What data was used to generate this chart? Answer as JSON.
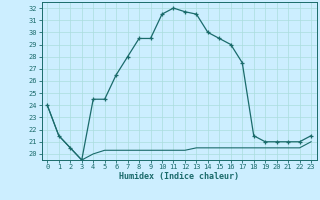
{
  "title": "",
  "xlabel": "Humidex (Indice chaleur)",
  "bg_color": "#cceeff",
  "line_color": "#1a6b6b",
  "grid_color": "#aadddd",
  "x_main": [
    0,
    1,
    2,
    3,
    4,
    5,
    6,
    7,
    8,
    9,
    10,
    11,
    12,
    13,
    14,
    15,
    16,
    17,
    18,
    19,
    20,
    21,
    22,
    23
  ],
  "y_main": [
    24.0,
    21.5,
    20.5,
    19.5,
    24.5,
    24.5,
    26.5,
    28.0,
    29.5,
    29.5,
    31.5,
    32.0,
    31.7,
    31.5,
    30.0,
    29.5,
    29.0,
    27.5,
    21.5,
    21.0,
    21.0,
    21.0,
    21.0,
    21.5
  ],
  "x_flat": [
    0,
    1,
    2,
    3,
    4,
    5,
    6,
    7,
    8,
    9,
    10,
    11,
    12,
    13,
    14,
    15,
    16,
    17,
    18,
    19,
    20,
    21,
    22,
    23
  ],
  "y_flat": [
    24.0,
    21.5,
    20.5,
    19.5,
    20.0,
    20.3,
    20.3,
    20.3,
    20.3,
    20.3,
    20.3,
    20.3,
    20.3,
    20.5,
    20.5,
    20.5,
    20.5,
    20.5,
    20.5,
    20.5,
    20.5,
    20.5,
    20.5,
    21.0
  ],
  "ylim": [
    19.5,
    32.5
  ],
  "xlim": [
    -0.5,
    23.5
  ],
  "yticks": [
    20,
    21,
    22,
    23,
    24,
    25,
    26,
    27,
    28,
    29,
    30,
    31,
    32
  ],
  "xticks": [
    0,
    1,
    2,
    3,
    4,
    5,
    6,
    7,
    8,
    9,
    10,
    11,
    12,
    13,
    14,
    15,
    16,
    17,
    18,
    19,
    20,
    21,
    22,
    23
  ]
}
